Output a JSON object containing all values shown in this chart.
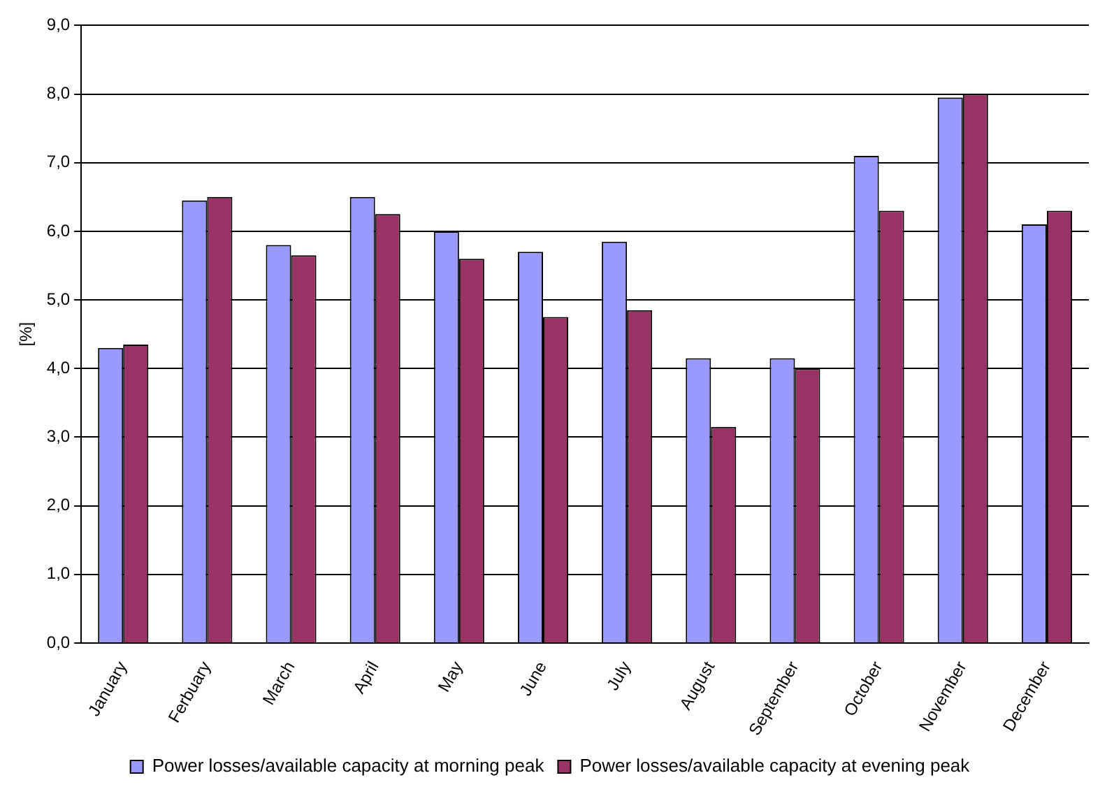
{
  "chart_data": {
    "type": "bar",
    "ylabel": "[%]",
    "categories": [
      "January",
      "Ferbuary",
      "March",
      "April",
      "May",
      "June",
      "July",
      "August",
      "September",
      "October",
      "November",
      "December"
    ],
    "series": [
      {
        "name": "Power losses/available capacity at morning peak",
        "color": "#9999ff",
        "values": [
          4.3,
          6.45,
          5.8,
          6.5,
          6.0,
          5.7,
          5.85,
          4.15,
          4.15,
          7.1,
          7.95,
          6.1
        ]
      },
      {
        "name": "Power losses/available capacity at evening peak",
        "color": "#993366",
        "values": [
          4.35,
          6.5,
          5.65,
          6.25,
          5.6,
          4.75,
          4.85,
          3.15,
          4.0,
          6.3,
          8.0,
          6.3
        ]
      }
    ],
    "ylim": [
      0,
      9
    ],
    "yticks": [
      {
        "value": 0,
        "label": "0,0"
      },
      {
        "value": 1,
        "label": "1,0"
      },
      {
        "value": 2,
        "label": "2,0"
      },
      {
        "value": 3,
        "label": "3,0"
      },
      {
        "value": 4,
        "label": "4,0"
      },
      {
        "value": 5,
        "label": "5,0"
      },
      {
        "value": 6,
        "label": "6,0"
      },
      {
        "value": 7,
        "label": "7,0"
      },
      {
        "value": 8,
        "label": "8,0"
      },
      {
        "value": 9,
        "label": "9,0"
      }
    ],
    "grid": "y",
    "legend": "bottom"
  }
}
